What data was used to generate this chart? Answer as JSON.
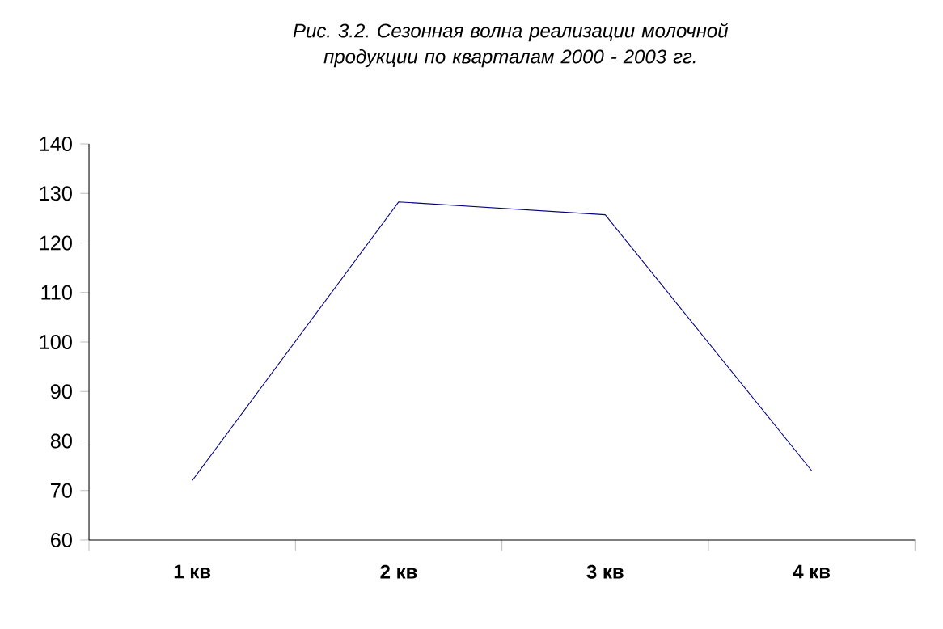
{
  "chart_data": {
    "type": "line",
    "title": "Рис. 3.2. Сезонная волна реализации молочной продукции по кварталам 2000 - 2003 гг.",
    "categories": [
      "1 кв",
      "2 кв",
      "3 кв",
      "4 кв"
    ],
    "values": [
      72,
      128.3,
      125.7,
      74
    ],
    "color": "#000080",
    "ylim": [
      60,
      140
    ],
    "yticks": [
      60,
      70,
      80,
      90,
      100,
      110,
      120,
      130,
      140
    ]
  }
}
